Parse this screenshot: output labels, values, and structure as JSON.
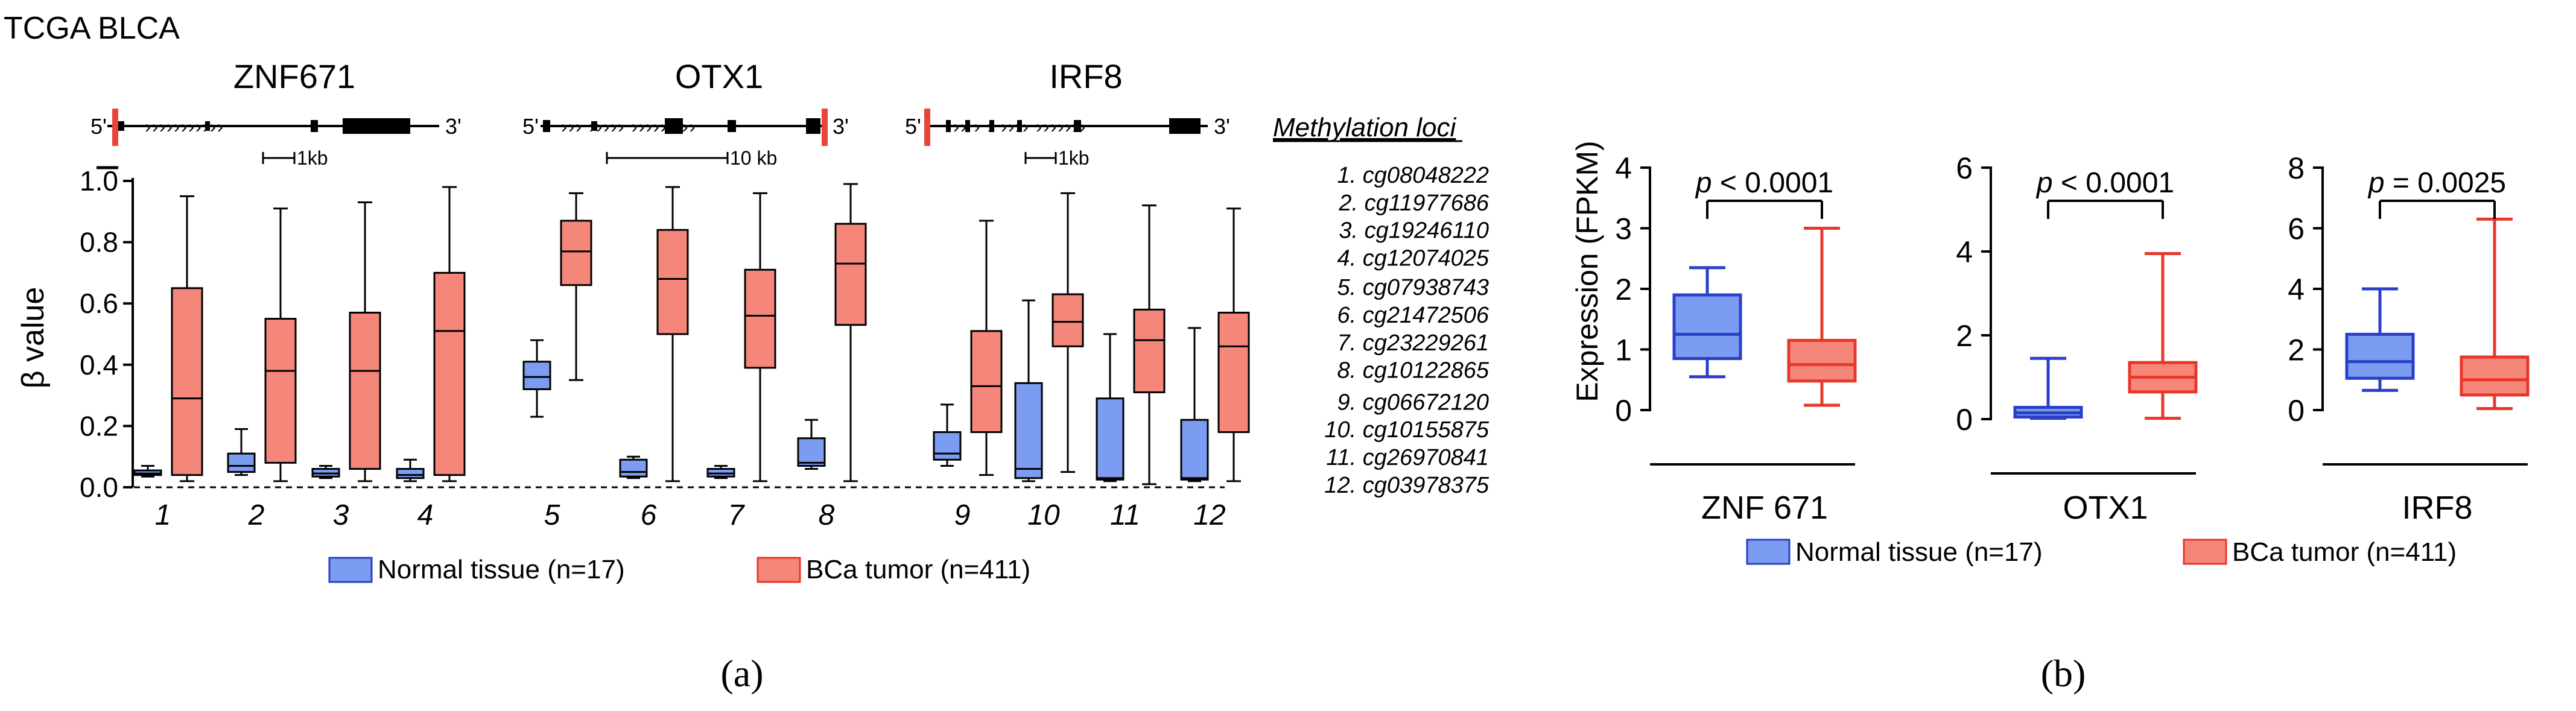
{
  "dataset_label": "TCGA BLCA",
  "colors": {
    "normal_fill": "#7b9cf0",
    "normal_stroke": "#2a3fc8",
    "tumor_fill": "#f4877a",
    "tumor_stroke": "#e8372a",
    "axis": "#000000",
    "marker_red": "#e8443a"
  },
  "panel_a": {
    "caption": "(a)",
    "ylabel": "β value",
    "ylim": [
      0,
      1.0
    ],
    "yticks": [
      "0.0",
      "0.2",
      "0.4",
      "0.6",
      "0.8",
      "1.0"
    ],
    "genes": [
      {
        "name": "ZNF671",
        "prime5": "5'",
        "prime3": "3'",
        "scale": "1kb"
      },
      {
        "name": "OTX1",
        "prime5": "5'",
        "prime3": "3'",
        "scale": "10 kb"
      },
      {
        "name": "IRF8",
        "prime5": "5'",
        "prime3": "3'",
        "scale": "1kb"
      }
    ],
    "methylation_title": "Methylation loci",
    "methylation_loci": [
      "1. cg08048222",
      "2. cg11977686",
      "3. cg19246110",
      "4. cg12074025",
      "5. cg07938743",
      "6. cg21472506",
      "7. cg23229261",
      "8. cg10122865",
      "9. cg06672120",
      "10. cg10155875",
      "11. cg26970841",
      "12. cg03978375"
    ],
    "legend": {
      "normal": "Normal tissue (n=17)",
      "tumor": "BCa tumor (n=411)"
    }
  },
  "panel_b": {
    "caption": "(b)",
    "ylabel": "Expression (FPKM)",
    "legend": {
      "normal": "Normal tissue (n=17)",
      "tumor": "BCa tumor (n=411)"
    }
  },
  "chart_data": [
    {
      "type": "box",
      "title": "TCGA BLCA",
      "ylabel": "β value",
      "ylim": [
        0,
        1.0
      ],
      "categories": [
        "1",
        "2",
        "3",
        "4",
        "5",
        "6",
        "7",
        "8",
        "9",
        "10",
        "11",
        "12"
      ],
      "series": [
        {
          "name": "Normal tissue (n=17)",
          "boxes": [
            {
              "min": 0.035,
              "q1": 0.04,
              "median": 0.045,
              "q3": 0.055,
              "max": 0.07
            },
            {
              "min": 0.04,
              "q1": 0.05,
              "median": 0.07,
              "q3": 0.11,
              "max": 0.19
            },
            {
              "min": 0.03,
              "q1": 0.035,
              "median": 0.045,
              "q3": 0.06,
              "max": 0.07
            },
            {
              "min": 0.02,
              "q1": 0.03,
              "median": 0.04,
              "q3": 0.06,
              "max": 0.09
            },
            {
              "min": 0.23,
              "q1": 0.32,
              "median": 0.36,
              "q3": 0.41,
              "max": 0.48
            },
            {
              "min": 0.03,
              "q1": 0.035,
              "median": 0.05,
              "q3": 0.09,
              "max": 0.1
            },
            {
              "min": 0.03,
              "q1": 0.035,
              "median": 0.045,
              "q3": 0.06,
              "max": 0.07
            },
            {
              "min": 0.06,
              "q1": 0.07,
              "median": 0.08,
              "q3": 0.16,
              "max": 0.22
            },
            {
              "min": 0.07,
              "q1": 0.09,
              "median": 0.11,
              "q3": 0.18,
              "max": 0.27
            },
            {
              "min": 0.02,
              "q1": 0.03,
              "median": 0.06,
              "q3": 0.34,
              "max": 0.61
            },
            {
              "min": 0.02,
              "q1": 0.025,
              "median": 0.03,
              "q3": 0.29,
              "max": 0.5
            },
            {
              "min": 0.02,
              "q1": 0.025,
              "median": 0.03,
              "q3": 0.22,
              "max": 0.52
            }
          ]
        },
        {
          "name": "BCa tumor (n=411)",
          "boxes": [
            {
              "min": 0.02,
              "q1": 0.04,
              "median": 0.29,
              "q3": 0.65,
              "max": 0.95
            },
            {
              "min": 0.02,
              "q1": 0.08,
              "median": 0.38,
              "q3": 0.55,
              "max": 0.91
            },
            {
              "min": 0.02,
              "q1": 0.06,
              "median": 0.38,
              "q3": 0.57,
              "max": 0.93
            },
            {
              "min": 0.02,
              "q1": 0.04,
              "median": 0.51,
              "q3": 0.7,
              "max": 0.98
            },
            {
              "min": 0.35,
              "q1": 0.66,
              "median": 0.77,
              "q3": 0.87,
              "max": 0.96
            },
            {
              "min": 0.02,
              "q1": 0.5,
              "median": 0.68,
              "q3": 0.84,
              "max": 0.98
            },
            {
              "min": 0.02,
              "q1": 0.39,
              "median": 0.56,
              "q3": 0.71,
              "max": 0.96
            },
            {
              "min": 0.02,
              "q1": 0.53,
              "median": 0.73,
              "q3": 0.86,
              "max": 0.99
            },
            {
              "min": 0.04,
              "q1": 0.18,
              "median": 0.33,
              "q3": 0.51,
              "max": 0.87
            },
            {
              "min": 0.05,
              "q1": 0.46,
              "median": 0.54,
              "q3": 0.63,
              "max": 0.96
            },
            {
              "min": 0.01,
              "q1": 0.31,
              "median": 0.48,
              "q3": 0.58,
              "max": 0.92
            },
            {
              "min": 0.02,
              "q1": 0.18,
              "median": 0.46,
              "q3": 0.57,
              "max": 0.91
            }
          ]
        }
      ]
    },
    {
      "type": "box",
      "xlabel": "ZNF 671",
      "ylabel": "Expression (FPKM)",
      "ylim": [
        0,
        4
      ],
      "yticks": [
        "0",
        "1",
        "2",
        "3",
        "4"
      ],
      "annotation": "p < 0.0001",
      "series": [
        {
          "name": "Normal tissue (n=17)",
          "box": {
            "min": 0.55,
            "q1": 0.85,
            "median": 1.25,
            "q3": 1.9,
            "max": 2.35
          }
        },
        {
          "name": "BCa tumor (n=411)",
          "box": {
            "min": 0.08,
            "q1": 0.48,
            "median": 0.75,
            "q3": 1.15,
            "max": 3.0
          }
        }
      ]
    },
    {
      "type": "box",
      "xlabel": "OTX1",
      "ylabel": "Expression (FPKM)",
      "ylim": [
        0,
        6
      ],
      "yticks": [
        "0",
        "2",
        "4",
        "6"
      ],
      "annotation": "p < 0.0001",
      "series": [
        {
          "name": "Normal tissue (n=17)",
          "box": {
            "min": 0.02,
            "q1": 0.05,
            "median": 0.15,
            "q3": 0.28,
            "max": 1.45
          }
        },
        {
          "name": "BCa tumor (n=411)",
          "box": {
            "min": 0.02,
            "q1": 0.65,
            "median": 1.0,
            "q3": 1.35,
            "max": 3.95
          }
        }
      ]
    },
    {
      "type": "box",
      "xlabel": "IRF8",
      "ylabel": "Expression (FPKM)",
      "ylim": [
        0,
        8
      ],
      "yticks": [
        "0",
        "2",
        "4",
        "6",
        "8"
      ],
      "annotation": "p = 0.0025",
      "series": [
        {
          "name": "Normal tissue (n=17)",
          "box": {
            "min": 0.65,
            "q1": 1.05,
            "median": 1.6,
            "q3": 2.5,
            "max": 4.0
          }
        },
        {
          "name": "BCa tumor (n=411)",
          "box": {
            "min": 0.05,
            "q1": 0.5,
            "median": 1.0,
            "q3": 1.75,
            "max": 6.3
          }
        }
      ]
    }
  ]
}
